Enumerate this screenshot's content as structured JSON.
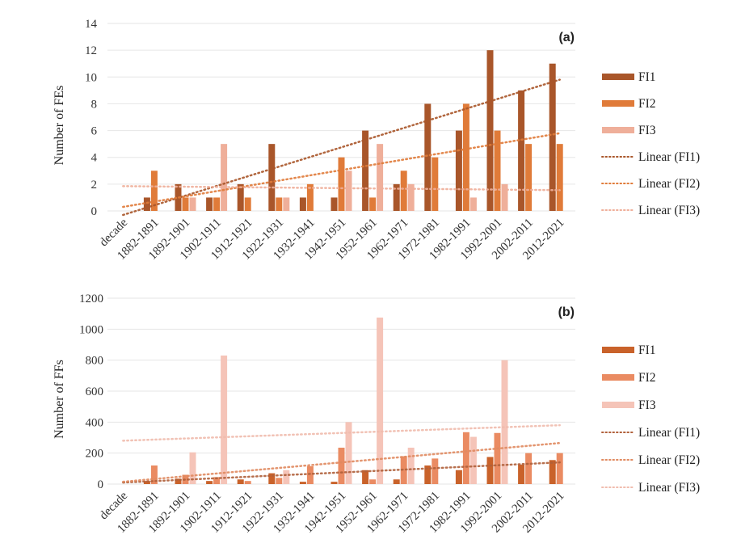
{
  "chart_data": [
    {
      "type": "bar",
      "panel_label": "(a)",
      "title": "",
      "xlabel": "",
      "ylabel": "Number of FEs",
      "ylim": [
        0,
        14
      ],
      "yticks": [
        0,
        2,
        4,
        6,
        8,
        10,
        12,
        14
      ],
      "grid": true,
      "legend_position": "right",
      "first_tick_label": "decade",
      "categories": [
        "1882-1891",
        "1892-1901",
        "1902-1911",
        "1912-1921",
        "1922-1931",
        "1932-1941",
        "1942-1951",
        "1952-1961",
        "1962-1971",
        "1972-1981",
        "1982-1991",
        "1992-2001",
        "2002-2011",
        "2012-2021"
      ],
      "series": [
        {
          "name": "FI1",
          "color": "#a9562a",
          "values": [
            1,
            2,
            1,
            2,
            5,
            1,
            1,
            6,
            2,
            8,
            6,
            12,
            9,
            11
          ]
        },
        {
          "name": "FI2",
          "color": "#e07b39",
          "values": [
            3,
            1,
            1,
            1,
            1,
            2,
            4,
            1,
            3,
            4,
            8,
            6,
            5,
            5
          ]
        },
        {
          "name": "FI3",
          "color": "#efaf9a",
          "values": [
            0,
            1,
            5,
            0,
            1,
            0,
            3,
            5,
            2,
            0,
            1,
            2,
            0,
            0
          ]
        }
      ],
      "trendlines": [
        {
          "name": "Linear (FI1)",
          "color": "#a9562a",
          "start": -0.3,
          "end": 9.8
        },
        {
          "name": "Linear (FI2)",
          "color": "#e07b39",
          "start": 0.3,
          "end": 5.8
        },
        {
          "name": "Linear (FI3)",
          "color": "#efaf9a",
          "start": 1.85,
          "end": 1.55
        }
      ]
    },
    {
      "type": "bar",
      "panel_label": "(b)",
      "title": "",
      "xlabel": "",
      "ylabel": "Number of FFs",
      "ylim": [
        0,
        1200
      ],
      "yticks": [
        0,
        200,
        400,
        600,
        800,
        1000,
        1200
      ],
      "grid": true,
      "legend_position": "right",
      "first_tick_label": "decade",
      "categories": [
        "1882-1891",
        "1892-1901",
        "1902-1911",
        "1912-1921",
        "1922-1931",
        "1932-1941",
        "1942-1951",
        "1952-1961",
        "1962-1971",
        "1972-1981",
        "1982-1991",
        "1992-2001",
        "2002-2011",
        "2012-2021"
      ],
      "series": [
        {
          "name": "FI1",
          "color": "#c9622a",
          "values": [
            20,
            35,
            20,
            30,
            70,
            15,
            15,
            90,
            30,
            120,
            90,
            175,
            125,
            155
          ]
        },
        {
          "name": "FI2",
          "color": "#ea8b62",
          "values": [
            120,
            60,
            45,
            20,
            40,
            115,
            235,
            30,
            180,
            165,
            335,
            330,
            200,
            200
          ]
        },
        {
          "name": "FI3",
          "color": "#f5c4b8",
          "values": [
            0,
            205,
            830,
            0,
            90,
            0,
            400,
            1075,
            235,
            0,
            305,
            800,
            0,
            0
          ]
        }
      ],
      "trendlines": [
        {
          "name": "Linear (FI1)",
          "color": "#b0603a",
          "start": 10,
          "end": 140
        },
        {
          "name": "Linear (FI2)",
          "color": "#e08a60",
          "start": 15,
          "end": 265
        },
        {
          "name": "Linear (FI3)",
          "color": "#f0bcae",
          "start": 280,
          "end": 380
        }
      ]
    }
  ]
}
